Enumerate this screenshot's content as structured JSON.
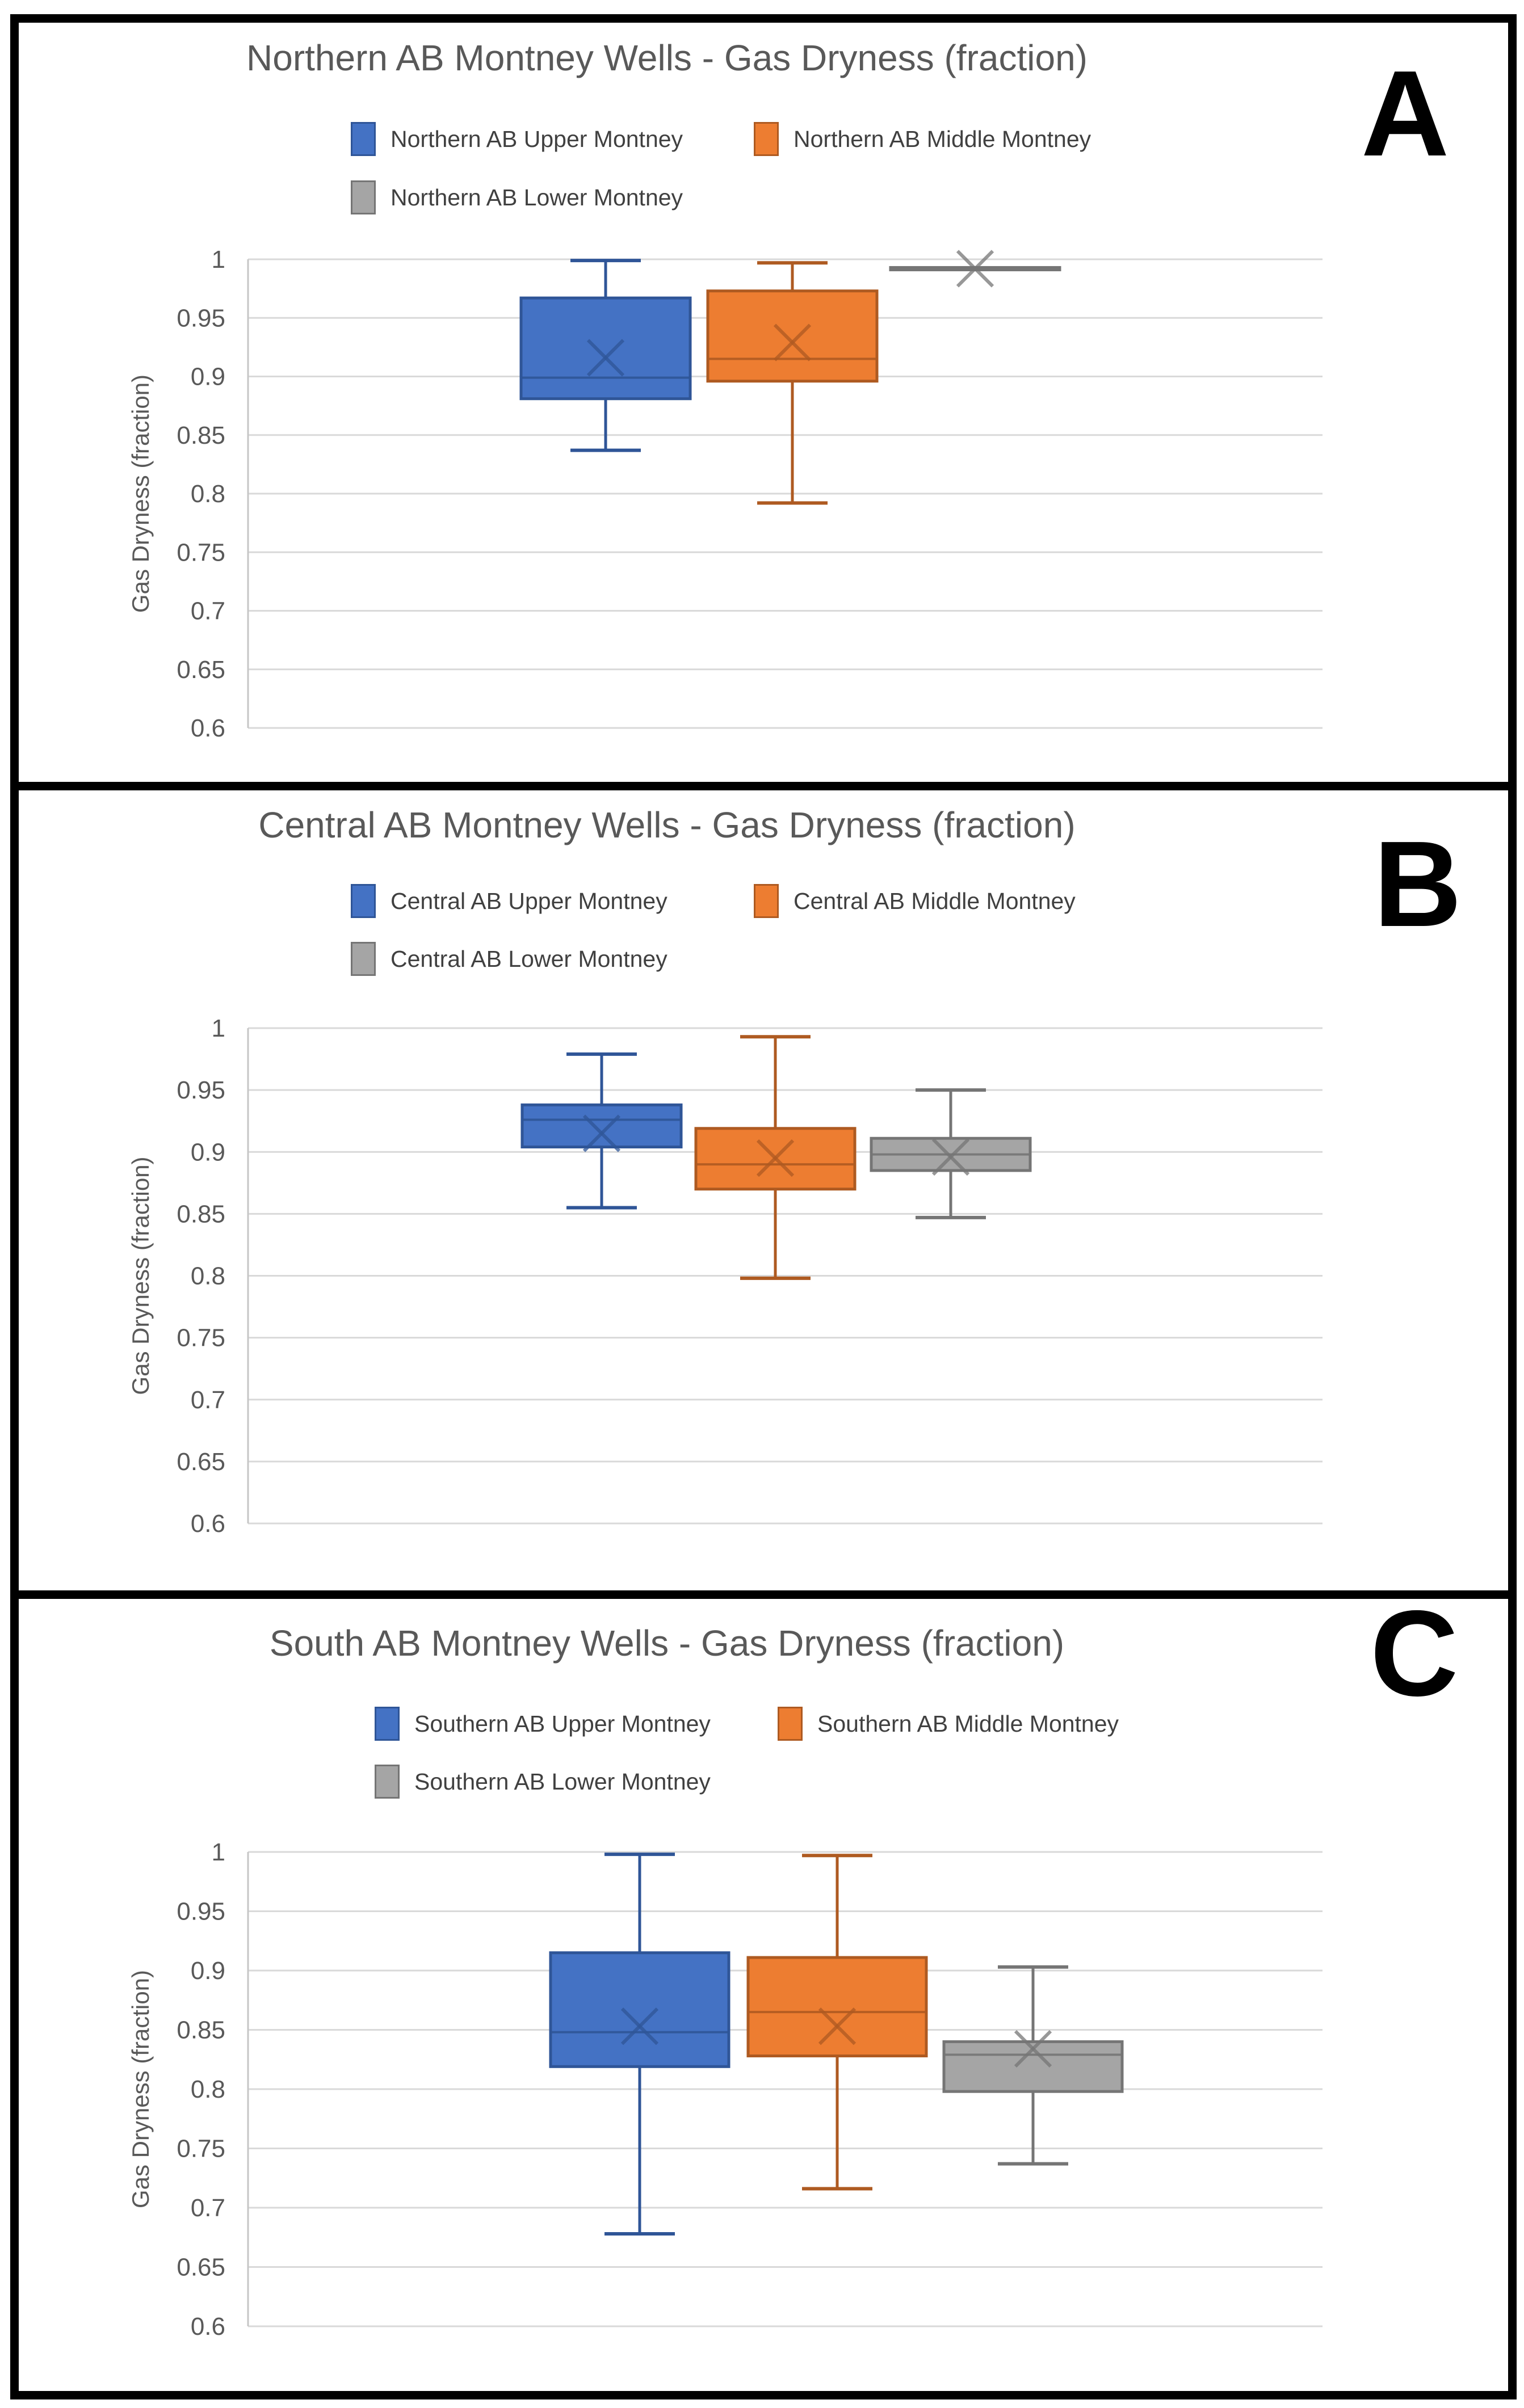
{
  "page": {
    "background": "#ffffff"
  },
  "colors": {
    "grid": "#D9D9D9",
    "axis_line": "#C6C6C6",
    "title_text": "#595959",
    "tick_text": "#595959",
    "legend_text": "#404040",
    "panel_border": "#000000",
    "letter_text": "#000000"
  },
  "y_axis": {
    "label": "Gas Dryness (fraction)",
    "ticks": [
      "1",
      "0.95",
      "0.9",
      "0.85",
      "0.8",
      "0.75",
      "0.7",
      "0.65",
      "0.6"
    ],
    "min": 0.6,
    "max": 1.0
  },
  "panels": [
    {
      "letter": "A",
      "title": "Northern AB Montney Wells - Gas Dryness (fraction)",
      "legend": [
        "Northern AB Upper Montney",
        "Northern AB Middle Montney",
        "Northern AB Lower Montney"
      ]
    },
    {
      "letter": "B",
      "title": "Central AB Montney Wells - Gas Dryness (fraction)",
      "legend": [
        "Central AB Upper Montney",
        "Central AB Middle Montney",
        "Central AB Lower Montney"
      ]
    },
    {
      "letter": "C",
      "title": "South AB Montney Wells - Gas Dryness (fraction)",
      "legend": [
        "Southern AB Upper Montney",
        "Southern AB Middle Montney",
        "Southern AB Lower Montney"
      ]
    }
  ],
  "chart_data": [
    {
      "type": "box",
      "title": "Northern AB Montney Wells - Gas Dryness (fraction)",
      "ylabel": "Gas Dryness (fraction)",
      "ylim": [
        0.6,
        1.0
      ],
      "ytick_step": 0.05,
      "grid": true,
      "legend_position": "top",
      "series": [
        {
          "name": "Northern AB Upper Montney",
          "color": "#4472C4",
          "line": "#2F5597",
          "min": 0.837,
          "q1": 0.881,
          "median": 0.899,
          "q3": 0.967,
          "max": 0.999,
          "mean": 0.916
        },
        {
          "name": "Northern AB Middle Montney",
          "color": "#ED7D31",
          "line": "#AE5A21",
          "min": 0.792,
          "q1": 0.896,
          "median": 0.915,
          "q3": 0.973,
          "max": 0.997,
          "mean": 0.929
        },
        {
          "name": "Northern AB Lower Montney",
          "color": "#A5A5A5",
          "line": "#757575",
          "min": 0.99,
          "q1": 0.991,
          "median": 0.992,
          "q3": 0.993,
          "max": 0.993,
          "mean": 0.992
        }
      ]
    },
    {
      "type": "box",
      "title": "Central AB Montney Wells - Gas Dryness (fraction)",
      "ylabel": "Gas Dryness (fraction)",
      "ylim": [
        0.6,
        1.0
      ],
      "ytick_step": 0.05,
      "grid": true,
      "legend_position": "top",
      "series": [
        {
          "name": "Central AB Upper Montney",
          "color": "#4472C4",
          "line": "#2F5597",
          "min": 0.855,
          "q1": 0.904,
          "median": 0.926,
          "q3": 0.938,
          "max": 0.979,
          "mean": 0.915
        },
        {
          "name": "Central AB Middle Montney",
          "color": "#ED7D31",
          "line": "#AE5A21",
          "min": 0.798,
          "q1": 0.87,
          "median": 0.89,
          "q3": 0.919,
          "max": 0.993,
          "mean": 0.895
        },
        {
          "name": "Central AB Lower Montney",
          "color": "#A5A5A5",
          "line": "#757575",
          "min": 0.847,
          "q1": 0.885,
          "median": 0.898,
          "q3": 0.911,
          "max": 0.95,
          "mean": 0.896
        }
      ]
    },
    {
      "type": "box",
      "title": "South AB Montney Wells - Gas Dryness (fraction)",
      "ylabel": "Gas Dryness (fraction)",
      "ylim": [
        0.6,
        1.0
      ],
      "ytick_step": 0.05,
      "grid": true,
      "legend_position": "top",
      "series": [
        {
          "name": "Southern AB Upper Montney",
          "color": "#4472C4",
          "line": "#2F5597",
          "min": 0.678,
          "q1": 0.819,
          "median": 0.848,
          "q3": 0.915,
          "max": 0.998,
          "mean": 0.853
        },
        {
          "name": "Southern AB Middle Montney",
          "color": "#ED7D31",
          "line": "#AE5A21",
          "min": 0.716,
          "q1": 0.828,
          "median": 0.865,
          "q3": 0.911,
          "max": 0.997,
          "mean": 0.853
        },
        {
          "name": "Southern AB Lower Montney",
          "color": "#A5A5A5",
          "line": "#757575",
          "min": 0.737,
          "q1": 0.798,
          "median": 0.829,
          "q3": 0.84,
          "max": 0.903,
          "mean": 0.834
        }
      ]
    }
  ]
}
